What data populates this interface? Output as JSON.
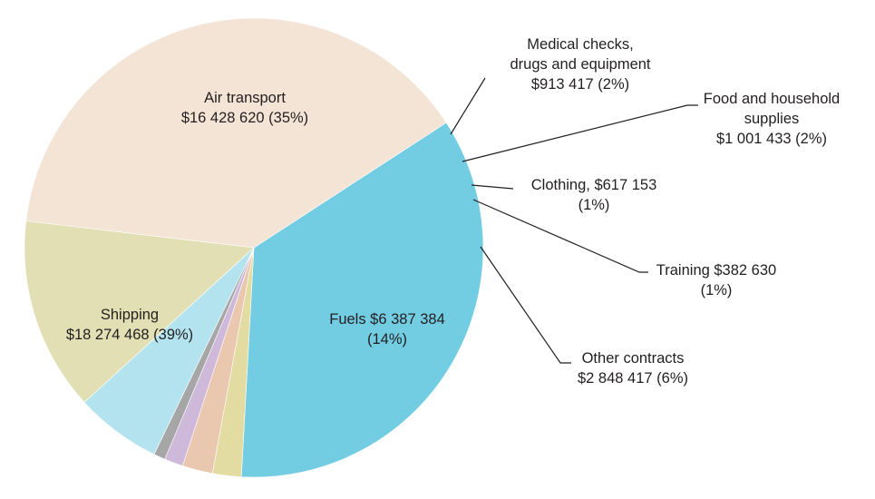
{
  "chart_data": {
    "type": "pie",
    "title": "",
    "slices": [
      {
        "key": "air",
        "lines": [
          "Air transport",
          "$16 428 620 (35%)"
        ],
        "value": 16428620,
        "color": "#72cde2"
      },
      {
        "key": "other1",
        "lines": [],
        "value": 950000,
        "color": "#e2dca2"
      },
      {
        "key": "food",
        "lines": [
          "Food and household",
          "supplies",
          "$1 001 433 (2%)"
        ],
        "value": 1001433,
        "color": "#eac8b0"
      },
      {
        "key": "clothing",
        "lines": [
          "Clothing,  $617 153",
          "(1%)"
        ],
        "value": 617153,
        "color": "#cfb9da"
      },
      {
        "key": "training",
        "lines": [
          "Training  $382 630",
          "(1%)"
        ],
        "value": 382630,
        "color": "#a6a6a6"
      },
      {
        "key": "other",
        "lines": [
          "Other contracts",
          "$2 848 417 (6%)"
        ],
        "value": 2848417,
        "color": "#b3e3ee"
      },
      {
        "key": "fuels",
        "lines": [
          "Fuels  $6 387 384",
          "(14%)"
        ],
        "value": 6387384,
        "color": "#e2dfb4"
      },
      {
        "key": "shipping",
        "lines": [
          "Shipping",
          "$18 274 468 (39%)"
        ],
        "value": 18274468,
        "color": "#f4e4d6"
      }
    ],
    "medical": {
      "lines": [
        "Medical checks,",
        "drugs and equipment",
        "$913 417  (2%)"
      ],
      "value": 913417
    }
  }
}
